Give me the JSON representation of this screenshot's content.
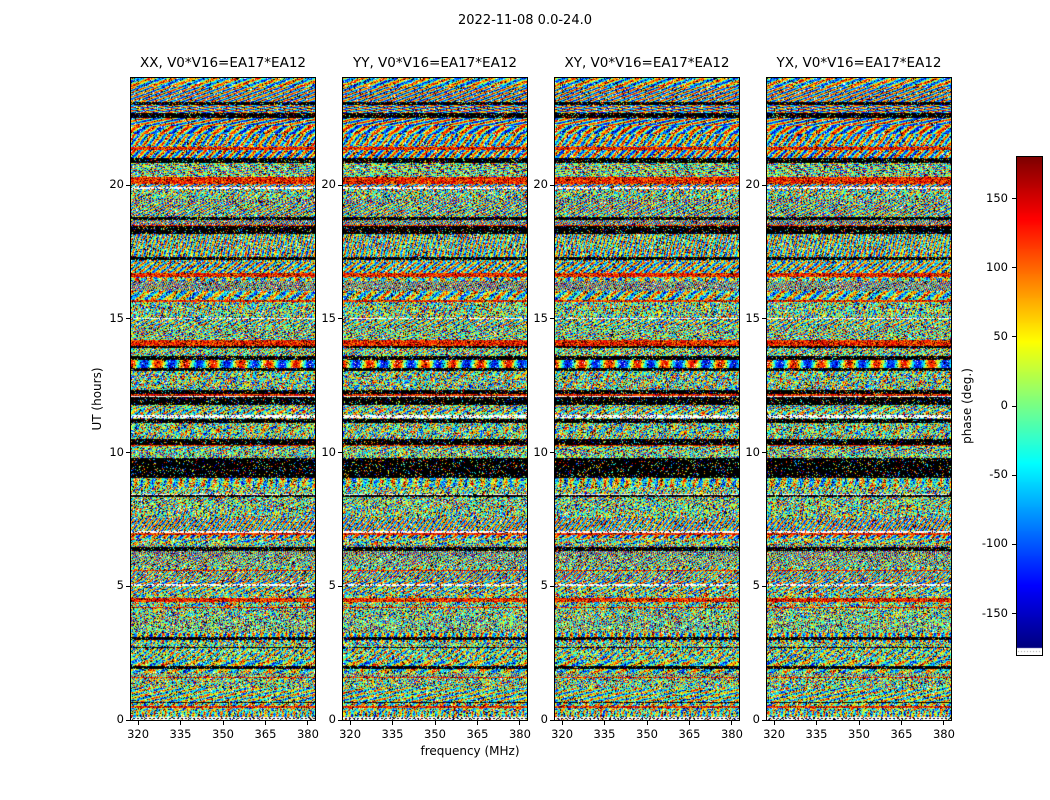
{
  "figure": {
    "title": "2022-11-08 0.0-24.0",
    "xlabel": "frequency (MHz)",
    "ylabel": "UT (hours)"
  },
  "panels": [
    {
      "title": "XX, V0*V16=EA17*EA12"
    },
    {
      "title": "YY, V0*V16=EA17*EA12"
    },
    {
      "title": "XY, V0*V16=EA17*EA12"
    },
    {
      "title": "YX, V0*V16=EA17*EA12"
    }
  ],
  "axes": {
    "xticks": [
      320,
      335,
      350,
      365,
      380
    ],
    "yticks": [
      0,
      5,
      10,
      15,
      20
    ],
    "xlim": [
      317.5,
      382.5
    ],
    "ylim": [
      0,
      24
    ]
  },
  "colorbar": {
    "label": "phase (deg.)",
    "ticks": [
      150,
      100,
      50,
      0,
      -50,
      -100,
      -150
    ],
    "range": [
      -180,
      180
    ],
    "colormap": "jet"
  },
  "chart_data": {
    "type": "heatmap",
    "title": "2022-11-08 0.0-24.0",
    "xlabel": "frequency (MHz)",
    "ylabel": "UT (hours)",
    "value_label": "phase (deg.)",
    "value_range": [
      -180,
      180
    ],
    "colormap": "jet",
    "xlim": [
      317.5,
      382.5
    ],
    "ylim": [
      0,
      24
    ],
    "panels": [
      "XX, V0*V16=EA17*EA12",
      "YY, V0*V16=EA17*EA12",
      "XY, V0*V16=EA17*EA12",
      "YX, V0*V16=EA17*EA12"
    ],
    "content": "Noise-like interferometric visibility phases (-180 to +180 deg, jet colormap) versus frequency (317.5-382.5 MHz) and UT time (0-24 h) for the four correlation products of baseline V0*V16 = EA17*EA12. Horizontal banded structure (black flagged rows, saturated red/orange bands, thin white gaps, a thick black band near 9-10 h, dotted row at the bottom edge) is aligned across all four panels; coherent diagonal phase fringes are visible near 21-24 h."
  }
}
